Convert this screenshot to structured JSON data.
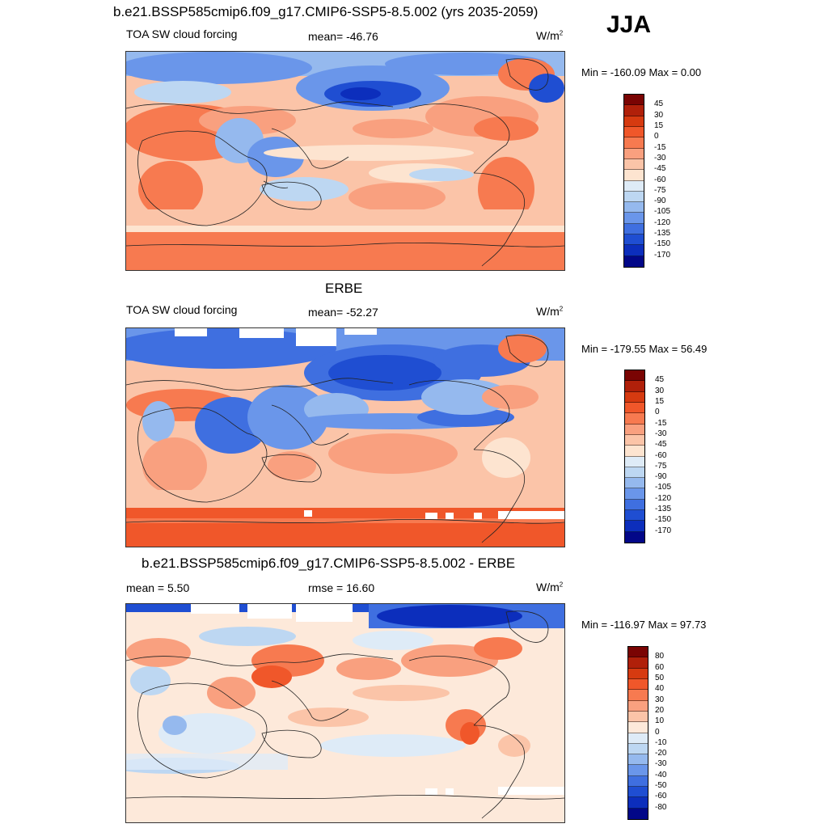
{
  "header": {
    "title": "b.e21.BSSP585cmip6.f09_g17.CMIP6-SSP5-8.5.002 (yrs 2035-2059)",
    "season": "JJA"
  },
  "panels": [
    {
      "id": "model",
      "variable": "TOA SW cloud forcing",
      "mean": "mean= -46.76",
      "units": "W/m",
      "units_sup": "2",
      "minmax": "Min = -160.09 Max =   0.00",
      "colorbar": {
        "colors": [
          "#7a0403",
          "#b0200a",
          "#d63a10",
          "#f0572a",
          "#f77a50",
          "#f9a07f",
          "#fbc4a8",
          "#fde4d0",
          "#deebf7",
          "#bdd7f2",
          "#95b9ee",
          "#6a96ea",
          "#3f6fe0",
          "#1f4ed2",
          "#0c2ebc",
          "#020788"
        ],
        "labels": [
          "45",
          "30",
          "15",
          "0",
          "-15",
          "-30",
          "-45",
          "-60",
          "-75",
          "-90",
          "-105",
          "-120",
          "-135",
          "-150",
          "-170"
        ]
      }
    },
    {
      "id": "obs",
      "heading": "ERBE",
      "variable": "TOA SW cloud forcing",
      "mean": "mean= -52.27",
      "units": "W/m",
      "units_sup": "2",
      "minmax": "Min = -179.55 Max =  56.49",
      "colorbar": {
        "colors": [
          "#7a0403",
          "#b0200a",
          "#d63a10",
          "#f0572a",
          "#f77a50",
          "#f9a07f",
          "#fbc4a8",
          "#fde4d0",
          "#deebf7",
          "#bdd7f2",
          "#95b9ee",
          "#6a96ea",
          "#3f6fe0",
          "#1f4ed2",
          "#0c2ebc",
          "#020788"
        ],
        "labels": [
          "45",
          "30",
          "15",
          "0",
          "-15",
          "-30",
          "-45",
          "-60",
          "-75",
          "-90",
          "-105",
          "-120",
          "-135",
          "-150",
          "-170"
        ]
      }
    },
    {
      "id": "diff",
      "heading": "b.e21.BSSP585cmip6.f09_g17.CMIP6-SSP5-8.5.002 - ERBE",
      "mean": "mean =   5.50",
      "rmse": "rmse =  16.60",
      "units": "W/m",
      "units_sup": "2",
      "minmax": "Min = -116.97 Max =  97.73",
      "colorbar": {
        "colors": [
          "#7a0403",
          "#b0200a",
          "#d63a10",
          "#f0572a",
          "#f77a50",
          "#f9a07f",
          "#fbc4a8",
          "#fde9da",
          "#deebf7",
          "#bdd7f2",
          "#95b9ee",
          "#6a96ea",
          "#3f6fe0",
          "#1f4ed2",
          "#0c2ebc",
          "#020788"
        ],
        "labels": [
          "80",
          "60",
          "50",
          "40",
          "30",
          "20",
          "10",
          "0",
          "-10",
          "-20",
          "-30",
          "-40",
          "-50",
          "-60",
          "-80"
        ]
      }
    }
  ]
}
